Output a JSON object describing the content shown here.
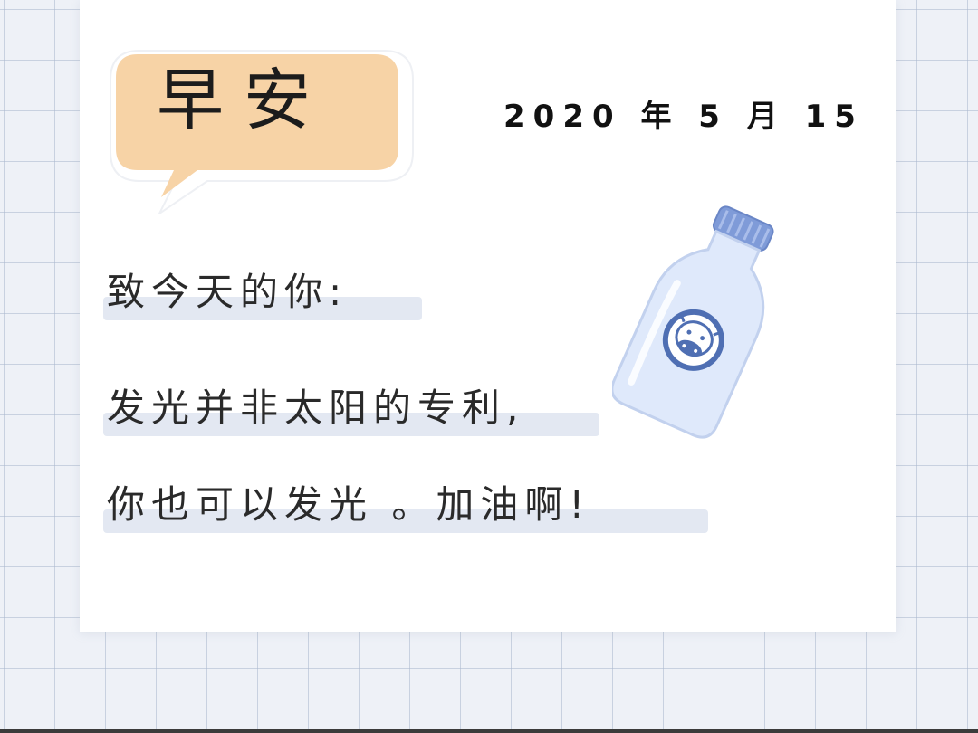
{
  "greeting": {
    "title": "早安",
    "bubble_color": "#f7d3a6",
    "bubble_outline": "#ffffff"
  },
  "date": {
    "text": "2020 年 5 月 15"
  },
  "message": {
    "lines": [
      "致今天的你:",
      "发光并非太阳的专利,",
      "你也可以发光 。加油啊!"
    ],
    "highlight_color": "#e3e8f2"
  },
  "decoration": {
    "bottle_icon": "milk-bottle-icon",
    "cow_icon": "cow-face-icon",
    "bottle_cap_color": "#7f9bd8",
    "bottle_body_color": "#dfe9fb"
  },
  "background": {
    "grid_color": "#aab6cd",
    "card_color": "#ffffff"
  }
}
